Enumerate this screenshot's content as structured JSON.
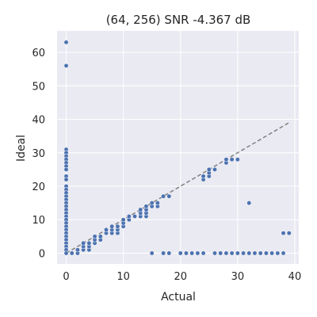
{
  "chart_data": {
    "type": "scatter",
    "title": "(64, 256) SNR -4.367 dB",
    "xlabel": "Actual",
    "ylabel": "Ideal",
    "xlim": [
      -1.6,
      40.7
    ],
    "ylim": [
      -3.2,
      66.4
    ],
    "xticks": [
      0,
      10,
      20,
      30,
      40
    ],
    "yticks": [
      0,
      10,
      20,
      30,
      40,
      50,
      60
    ],
    "grid": true,
    "background": "#eaeaf2",
    "point_color": "#4c72b0",
    "reference_line": {
      "x": [
        0,
        39
      ],
      "y": [
        0,
        39
      ],
      "color": "#808080",
      "style": "dashed"
    },
    "points": [
      [
        0,
        63
      ],
      [
        0,
        56
      ],
      [
        0,
        31
      ],
      [
        0,
        30
      ],
      [
        0,
        29
      ],
      [
        0,
        28
      ],
      [
        0,
        27
      ],
      [
        0,
        26
      ],
      [
        0,
        25
      ],
      [
        0,
        23
      ],
      [
        0,
        22
      ],
      [
        0,
        20
      ],
      [
        0,
        19
      ],
      [
        0,
        18
      ],
      [
        0,
        17
      ],
      [
        0,
        16
      ],
      [
        0,
        15
      ],
      [
        0,
        14
      ],
      [
        0,
        13
      ],
      [
        0,
        12
      ],
      [
        0,
        11
      ],
      [
        0,
        10
      ],
      [
        0,
        9
      ],
      [
        0,
        8
      ],
      [
        0,
        7
      ],
      [
        0,
        6
      ],
      [
        0,
        5
      ],
      [
        0,
        4
      ],
      [
        0,
        3
      ],
      [
        0,
        2
      ],
      [
        0,
        1
      ],
      [
        0,
        0
      ],
      [
        1,
        0
      ],
      [
        2,
        0
      ],
      [
        2,
        1
      ],
      [
        3,
        1
      ],
      [
        3,
        2
      ],
      [
        3,
        3
      ],
      [
        4,
        1
      ],
      [
        4,
        2
      ],
      [
        4,
        3
      ],
      [
        5,
        3
      ],
      [
        5,
        4
      ],
      [
        5,
        5
      ],
      [
        6,
        4
      ],
      [
        6,
        5
      ],
      [
        7,
        6
      ],
      [
        7,
        7
      ],
      [
        8,
        6
      ],
      [
        8,
        7
      ],
      [
        8,
        8
      ],
      [
        9,
        6
      ],
      [
        9,
        7
      ],
      [
        9,
        8
      ],
      [
        10,
        8
      ],
      [
        10,
        9
      ],
      [
        10,
        10
      ],
      [
        11,
        10
      ],
      [
        11,
        11
      ],
      [
        12,
        11
      ],
      [
        13,
        11
      ],
      [
        13,
        12
      ],
      [
        13,
        13
      ],
      [
        14,
        11
      ],
      [
        14,
        12
      ],
      [
        14,
        13
      ],
      [
        14,
        14
      ],
      [
        15,
        14
      ],
      [
        15,
        15
      ],
      [
        16,
        14
      ],
      [
        16,
        15
      ],
      [
        17,
        17
      ],
      [
        18,
        17
      ],
      [
        24,
        22
      ],
      [
        24,
        23
      ],
      [
        25,
        23
      ],
      [
        25,
        24
      ],
      [
        25,
        25
      ],
      [
        26,
        25
      ],
      [
        28,
        27
      ],
      [
        28,
        28
      ],
      [
        29,
        28
      ],
      [
        30,
        28
      ],
      [
        32,
        15
      ],
      [
        15,
        0
      ],
      [
        17,
        0
      ],
      [
        18,
        0
      ],
      [
        20,
        0
      ],
      [
        21,
        0
      ],
      [
        22,
        0
      ],
      [
        23,
        0
      ],
      [
        24,
        0
      ],
      [
        26,
        0
      ],
      [
        27,
        0
      ],
      [
        28,
        0
      ],
      [
        29,
        0
      ],
      [
        30,
        0
      ],
      [
        31,
        0
      ],
      [
        32,
        0
      ],
      [
        33,
        0
      ],
      [
        34,
        0
      ],
      [
        35,
        0
      ],
      [
        36,
        0
      ],
      [
        37,
        0
      ],
      [
        38,
        0
      ],
      [
        38,
        6
      ],
      [
        39,
        6
      ]
    ]
  }
}
